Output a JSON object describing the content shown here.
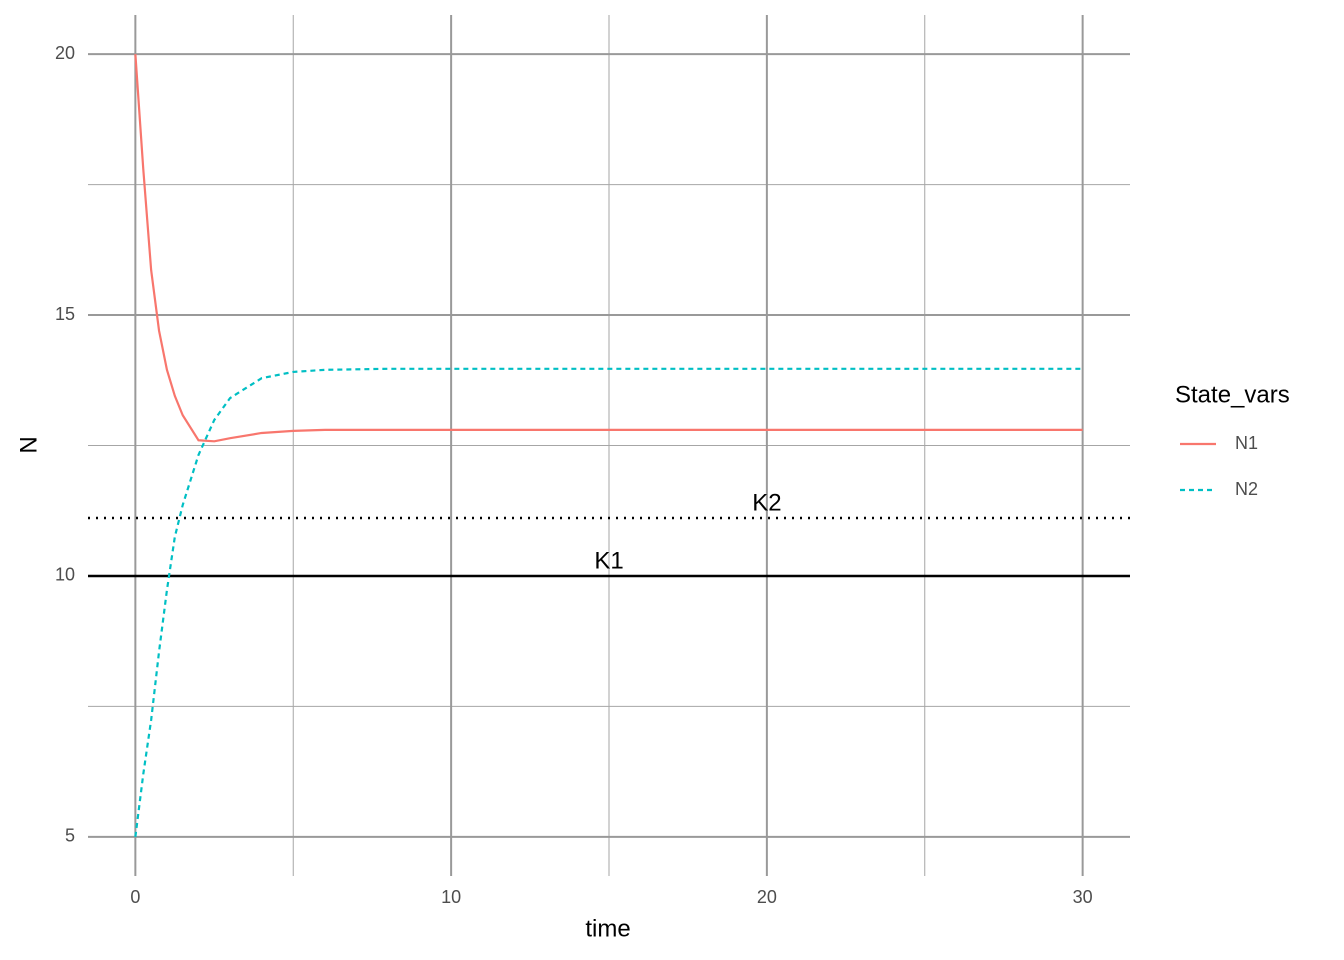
{
  "chart_data": {
    "type": "line",
    "x_label": "time",
    "y_label": "N",
    "x": [
      0,
      0.25,
      0.5,
      0.75,
      1,
      1.25,
      1.5,
      2,
      2.5,
      3,
      4,
      5,
      6,
      8,
      10,
      15,
      20,
      25,
      30
    ],
    "series": [
      {
        "name": "N1",
        "color": "#F8766D",
        "linetype": "solid",
        "values": [
          20,
          17.8,
          15.86,
          14.7,
          13.95,
          13.45,
          13.08,
          12.6,
          12.58,
          12.64,
          12.74,
          12.78,
          12.8,
          12.8,
          12.8,
          12.8,
          12.8,
          12.8,
          12.8
        ]
      },
      {
        "name": "N2",
        "color": "#00BFC4",
        "linetype": "dashed",
        "values": [
          5,
          6.2,
          7.24,
          8.55,
          9.73,
          10.75,
          11.36,
          12.32,
          12.99,
          13.41,
          13.79,
          13.91,
          13.95,
          13.97,
          13.97,
          13.97,
          13.97,
          13.97,
          13.97
        ]
      }
    ],
    "hlines": [
      {
        "label": "K1",
        "value": 10,
        "linetype": "solid",
        "label_x": 15
      },
      {
        "label": "K2",
        "value": 11.11,
        "linetype": "dotted",
        "label_x": 20
      }
    ],
    "legend_title": "State_vars",
    "legend_position": "right",
    "xlim": [
      -1.5,
      31.5
    ],
    "xticks": [
      0,
      10,
      20,
      30
    ],
    "ylim": [
      4.25,
      20.75
    ],
    "yticks": [
      5,
      10,
      15,
      20
    ],
    "grid": true
  }
}
